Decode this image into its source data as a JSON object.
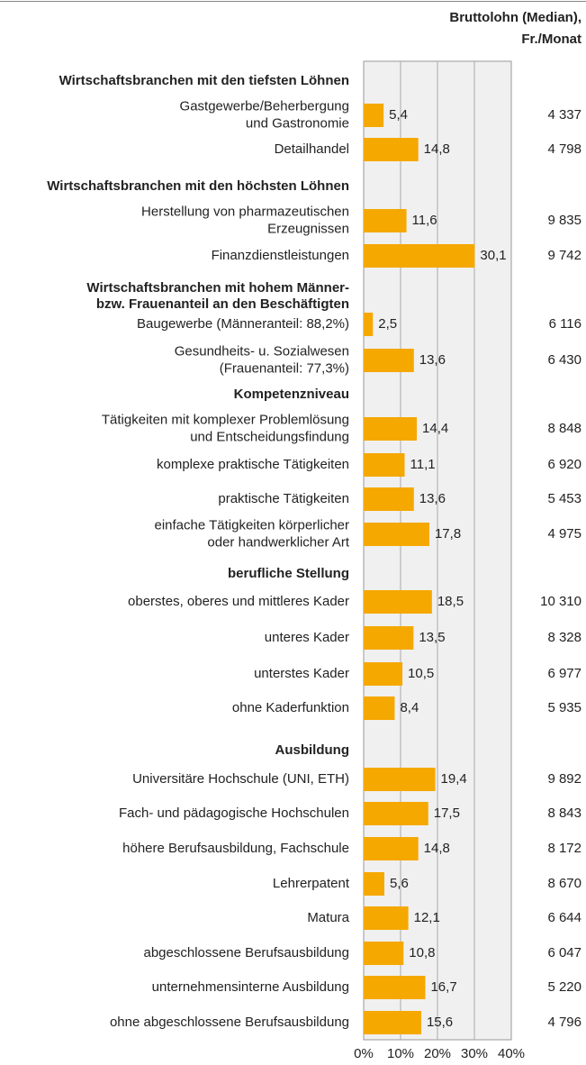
{
  "chart_data": {
    "type": "bar",
    "wage_header": [
      "Bruttolohn (Median),",
      "Fr./Monat"
    ],
    "color": "#f5a800",
    "xlim": [
      0,
      40
    ],
    "xticks": [
      {
        "value": 0,
        "label": "0%"
      },
      {
        "value": 10,
        "label": "10%"
      },
      {
        "value": 20,
        "label": "20%"
      },
      {
        "value": 30,
        "label": "30%"
      },
      {
        "value": 40,
        "label": "40%"
      }
    ],
    "grid": true,
    "groups": [
      {
        "name": [
          "Wirtschaftsbranchen mit den tiefsten Löhnen"
        ],
        "categories": [
          [
            "Gastgewerbe/Beherbergung",
            "und Gastronomie"
          ],
          [
            "Detailhandel"
          ]
        ],
        "values": [
          5.4,
          14.8
        ],
        "value_labels": [
          "5,4",
          "14,8"
        ],
        "wages": [
          4337,
          4798
        ],
        "wage_labels": [
          "4 337",
          "4 798"
        ]
      },
      {
        "name": [
          "Wirtschaftsbranchen mit den höchsten Löhnen"
        ],
        "categories": [
          [
            "Herstellung von pharmazeutischen",
            "Erzeugnissen"
          ],
          [
            "Finanzdienstleistungen"
          ]
        ],
        "values": [
          11.6,
          30.1
        ],
        "value_labels": [
          "11,6",
          "30,1"
        ],
        "wages": [
          9835,
          9742
        ],
        "wage_labels": [
          "9 835",
          "9 742"
        ]
      },
      {
        "name": [
          "Wirtschaftsbranchen mit hohem Männer-",
          "bzw. Frauenanteil an den Beschäftigten"
        ],
        "categories": [
          [
            "Baugewerbe (Männeranteil: 88,2%)"
          ],
          [
            "Gesundheits- u. Sozialwesen",
            "(Frauenanteil: 77,3%)"
          ]
        ],
        "values": [
          2.5,
          13.6
        ],
        "value_labels": [
          "2,5",
          "13,6"
        ],
        "wages": [
          6116,
          6430
        ],
        "wage_labels": [
          "6 116",
          "6 430"
        ]
      },
      {
        "name": [
          "Kompetenzniveau"
        ],
        "categories": [
          [
            "Tätigkeiten mit komplexer Problemlösung",
            "und Entscheidungsfindung"
          ],
          [
            "komplexe praktische Tätigkeiten"
          ],
          [
            "praktische Tätigkeiten"
          ],
          [
            "einfache Tätigkeiten körperlicher",
            "oder handwerklicher Art"
          ]
        ],
        "values": [
          14.4,
          11.1,
          13.6,
          17.8
        ],
        "value_labels": [
          "14,4",
          "11,1",
          "13,6",
          "17,8"
        ],
        "wages": [
          8848,
          6920,
          5453,
          4975
        ],
        "wage_labels": [
          "8 848",
          "6 920",
          "5 453",
          "4 975"
        ]
      },
      {
        "name": [
          "berufliche Stellung"
        ],
        "categories": [
          [
            "oberstes, oberes und mittleres Kader"
          ],
          [
            "unteres Kader"
          ],
          [
            "unterstes Kader"
          ],
          [
            "ohne Kaderfunktion"
          ]
        ],
        "values": [
          18.5,
          13.5,
          10.5,
          8.4
        ],
        "value_labels": [
          "18,5",
          "13,5",
          "10,5",
          "8,4"
        ],
        "wages": [
          10310,
          8328,
          6977,
          5935
        ],
        "wage_labels": [
          "10 310",
          "8 328",
          "6 977",
          "5 935"
        ]
      },
      {
        "name": [
          "Ausbildung"
        ],
        "categories": [
          [
            "Universitäre Hochschule (UNI, ETH)"
          ],
          [
            "Fach- und pädagogische Hochschulen"
          ],
          [
            "höhere Berufsausbildung, Fachschule"
          ],
          [
            "Lehrerpatent"
          ],
          [
            "Matura"
          ],
          [
            "abgeschlossene Berufsausbildung"
          ],
          [
            "unternehmensinterne Ausbildung"
          ],
          [
            "ohne abgeschlossene Berufsausbildung"
          ]
        ],
        "values": [
          19.4,
          17.5,
          14.8,
          5.6,
          12.1,
          10.8,
          16.7,
          15.6
        ],
        "value_labels": [
          "19,4",
          "17,5",
          "14,8",
          "5,6",
          "12,1",
          "10,8",
          "16,7",
          "15,6"
        ],
        "wages": [
          9892,
          8843,
          8172,
          8670,
          6644,
          6047,
          5220,
          4796
        ],
        "wage_labels": [
          "9 892",
          "8 843",
          "8 172",
          "8 670",
          "6 644",
          "6 047",
          "5 220",
          "4 796"
        ]
      }
    ]
  }
}
